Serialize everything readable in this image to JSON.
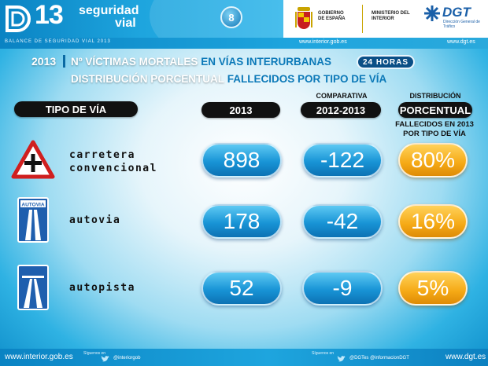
{
  "header": {
    "logo_number": "13",
    "logo_line1": "seguridad",
    "logo_line2": "vial",
    "page_number": "8",
    "gobierno": "GOBIERNO DE ESPAÑA",
    "ministerio": "MINISTERIO DEL INTERIOR",
    "dgt": "DGT",
    "dgt_sub": "Dirección General de Tráfico",
    "balance": "BALANCE DE SEGURIDAD VIAL 2013",
    "url_interior": "www.interior.gob.es",
    "url_dgt": "www.dgt.es"
  },
  "title": {
    "year": "2013",
    "line1_bold": "Nº VÍCTIMAS MORTALES",
    "line1_rest": " EN VÍAS INTERURBANAS",
    "hours": "24 HORAS",
    "line2_bold": "DISTRIBUCIÓN PORCENTUAL",
    "line2_rest": " FALLECIDOS POR TIPO DE VÍA"
  },
  "columns": {
    "tipo": "TIPO DE VÍA",
    "year": "2013",
    "comparativa_top": "COMPARATIVA",
    "comparativa": "2012-2013",
    "distribucion_top": "DISTRIBUCIÓN",
    "distribucion": "PORCENTUAL",
    "fallecidos_l1": "FALLECIDOS EN 2013",
    "fallecidos_l2": "POR TIPO DE VÍA"
  },
  "rows": [
    {
      "label_l1": "carretera",
      "label_l2": "convencional",
      "icon": "warning-triangle-icon",
      "value": "898",
      "diff": "-122",
      "pct": "80%"
    },
    {
      "label_l1": "autovia",
      "label_l2": "",
      "icon": "autovia-sign-icon",
      "sign_text": "AUTOVIA",
      "value": "178",
      "diff": "-42",
      "pct": "16%"
    },
    {
      "label_l1": "autopista",
      "label_l2": "",
      "icon": "autopista-sign-icon",
      "value": "52",
      "diff": "-9",
      "pct": "5%"
    }
  ],
  "footer": {
    "url_interior": "www.interior.gob.es",
    "url_dgt": "www.dgt.es",
    "siguenos1": "Síguenos en",
    "handle1": "@interiorgob",
    "siguenos2": "Síguenos en",
    "handle2": "@DGTes  @informacionDGT"
  },
  "colors": {
    "accent_blue": "#0c79b8",
    "pill_black": "#111111",
    "value_blue": "#1894d6",
    "value_gold": "#f5a915",
    "sign_blue": "#1f5fae",
    "warning_red": "#d01f1f"
  }
}
